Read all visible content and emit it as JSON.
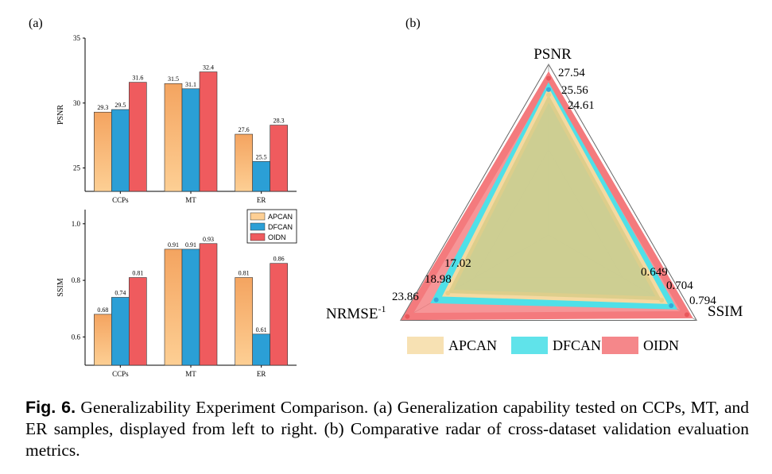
{
  "panel_labels": {
    "a": "(a)",
    "b": "(b)"
  },
  "colors": {
    "APCAN_bar_top": "#f4a460",
    "APCAN_bar_bottom": "#fdcf94",
    "DFCAN": "#2b9fd6",
    "OIDN": "#ef5b5e",
    "radar_APCAN": "#f5d9a0",
    "radar_DFCAN": "#4fe0e8",
    "radar_OIDN": "#f47a7d"
  },
  "chart_data": [
    {
      "type": "bar",
      "panel": "(a) top",
      "categories": [
        "CCPs",
        "MT",
        "ER"
      ],
      "ylabel": "PSNR",
      "ylim": [
        23.2,
        35
      ],
      "yticks": [
        25,
        30,
        35
      ],
      "series": [
        {
          "name": "APCAN",
          "values": [
            29.3,
            31.5,
            27.6
          ],
          "labels": [
            "29.3",
            "31.5",
            "27.6"
          ]
        },
        {
          "name": "DFCAN",
          "values": [
            29.5,
            31.1,
            25.5
          ],
          "labels": [
            "29.5",
            "31.1",
            "25.5"
          ]
        },
        {
          "name": "OIDN",
          "values": [
            31.6,
            32.4,
            28.3
          ],
          "labels": [
            "31.6",
            "32.4",
            "28.3"
          ]
        }
      ]
    },
    {
      "type": "bar",
      "panel": "(a) bottom",
      "categories": [
        "CCPs",
        "MT",
        "ER"
      ],
      "ylabel": "SSIM",
      "ylim": [
        0.5,
        1.05
      ],
      "yticks": [
        0.6,
        0.8,
        1.0
      ],
      "ytick_labels": [
        "0.6",
        "0.8",
        "1.0"
      ],
      "legend": "top-right",
      "series": [
        {
          "name": "APCAN",
          "values": [
            0.68,
            0.91,
            0.81
          ],
          "labels": [
            "0.68",
            "0.91",
            "0.81"
          ]
        },
        {
          "name": "DFCAN",
          "values": [
            0.74,
            0.91,
            0.61
          ],
          "labels": [
            "0.74",
            "0.91",
            "0.61"
          ]
        },
        {
          "name": "OIDN",
          "values": [
            0.81,
            0.93,
            0.86
          ],
          "labels": [
            "0.81",
            "0.93",
            "0.86"
          ]
        }
      ]
    },
    {
      "type": "radar",
      "panel": "(b)",
      "axes": [
        {
          "name": "PSNR",
          "label": "PSNR",
          "max": 30.0,
          "labels": [
            "27.54",
            "25.56",
            "24.61"
          ]
        },
        {
          "name": "SSIM",
          "label": "SSIM",
          "max": 0.85,
          "labels": [
            "0.649",
            "0.704",
            "0.794"
          ]
        },
        {
          "name": "NRMSE",
          "label": "NRMSE",
          "superscript": "-1",
          "max": 25.0,
          "labels": [
            "17.02",
            "18.98",
            "23.86"
          ]
        }
      ],
      "legend": "bottom",
      "series": [
        {
          "name": "APCAN",
          "values": [
            24.61,
            0.649,
            17.02
          ]
        },
        {
          "name": "DFCAN",
          "values": [
            25.56,
            0.704,
            18.98
          ]
        },
        {
          "name": "OIDN",
          "values": [
            27.54,
            0.794,
            23.86
          ]
        }
      ]
    }
  ],
  "caption": {
    "label": "Fig. 6.",
    "text": "Generalizability Experiment Comparison. (a) Generalization capability tested on CCPs, MT, and ER samples, displayed from left to right. (b) Comparative radar of cross-dataset validation evaluation metrics."
  }
}
